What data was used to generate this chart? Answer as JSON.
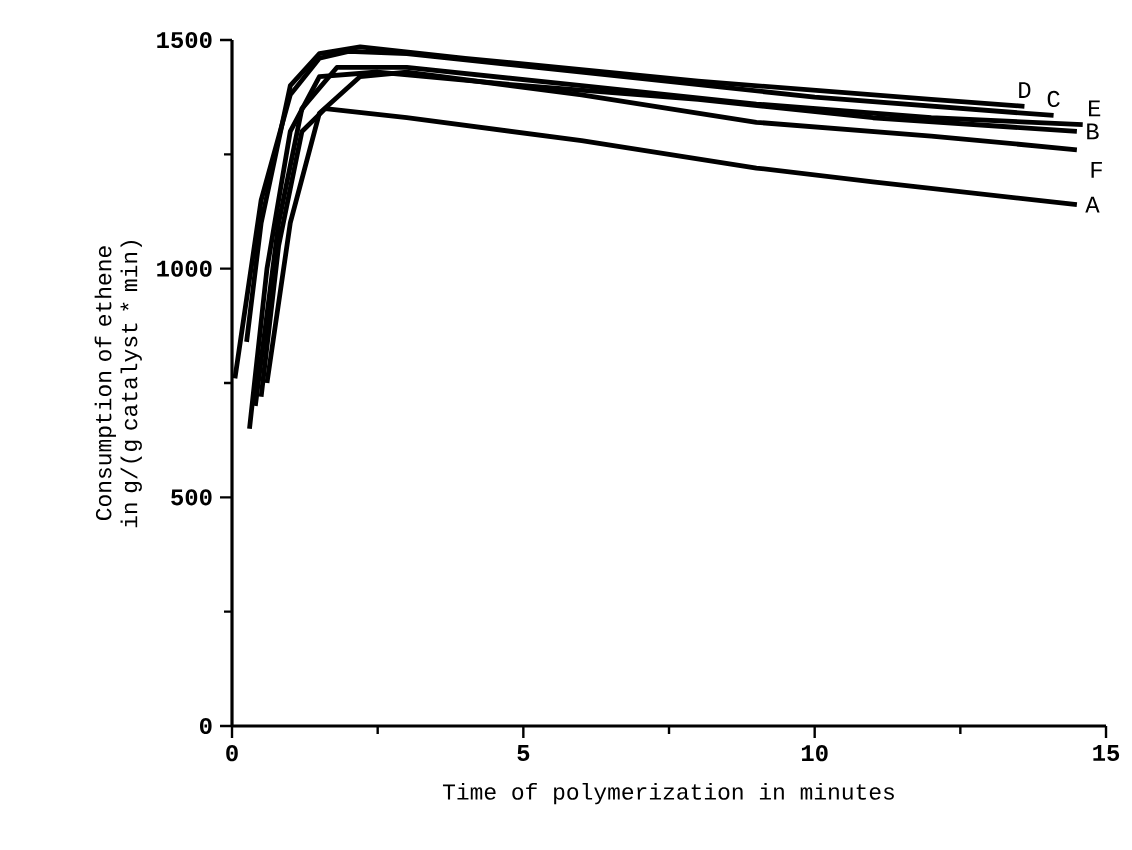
{
  "chart_data": {
    "type": "line",
    "xlabel": "Time of polymerization in minutes",
    "ylabel": "Consumption of ethene in g/(g catalyst * min)",
    "xlim": [
      0,
      15
    ],
    "ylim": [
      0,
      1500
    ],
    "xticks": [
      0,
      5,
      10,
      15
    ],
    "yticks": [
      0,
      500,
      1000,
      1500
    ],
    "grid": false,
    "marker": "none",
    "line_style": "solid",
    "series": [
      {
        "name": "A",
        "color": "#000000",
        "x": [
          0.5,
          0.8,
          1.2,
          1.6,
          3,
          6,
          9,
          11,
          14.5
        ],
        "values": [
          720,
          1050,
          1300,
          1350,
          1330,
          1280,
          1220,
          1190,
          1140
        ]
      },
      {
        "name": "B",
        "color": "#000000",
        "x": [
          0.3,
          0.6,
          1,
          1.5,
          2.5,
          5,
          8,
          11,
          14.5
        ],
        "values": [
          650,
          1000,
          1300,
          1420,
          1430,
          1400,
          1370,
          1330,
          1300
        ]
      },
      {
        "name": "C",
        "color": "#000000",
        "x": [
          0.05,
          0.5,
          1,
          1.5,
          2,
          3,
          6,
          10,
          14.1
        ],
        "values": [
          760,
          1150,
          1380,
          1460,
          1475,
          1470,
          1430,
          1375,
          1335
        ]
      },
      {
        "name": "D",
        "color": "#000000",
        "x": [
          0.25,
          0.5,
          1,
          1.5,
          2.2,
          4,
          8,
          12,
          13.6
        ],
        "values": [
          840,
          1100,
          1400,
          1470,
          1485,
          1460,
          1410,
          1370,
          1355
        ]
      },
      {
        "name": "E",
        "color": "#000000",
        "x": [
          0.4,
          0.8,
          1.2,
          1.8,
          3,
          6,
          9,
          12,
          14.6
        ],
        "values": [
          700,
          1100,
          1350,
          1440,
          1440,
          1400,
          1360,
          1330,
          1315
        ]
      },
      {
        "name": "F",
        "color": "#000000",
        "x": [
          0.6,
          1,
          1.5,
          2.2,
          3,
          6,
          9,
          12,
          14.5
        ],
        "values": [
          750,
          1100,
          1340,
          1420,
          1430,
          1380,
          1320,
          1290,
          1260
        ]
      }
    ]
  }
}
